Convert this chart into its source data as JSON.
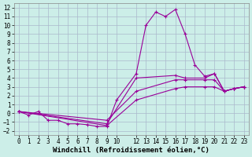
{
  "xlabel": "Windchill (Refroidissement éolien,°C)",
  "bg_color": "#cceee8",
  "grid_color": "#aab8cc",
  "line_color": "#990099",
  "xlim": [
    -0.5,
    23.5
  ],
  "ylim": [
    -2.5,
    12.5
  ],
  "xticks": [
    0,
    1,
    2,
    3,
    4,
    5,
    6,
    7,
    8,
    9,
    10,
    12,
    13,
    14,
    15,
    16,
    17,
    18,
    19,
    20,
    21,
    22,
    23
  ],
  "yticks": [
    -2,
    -1,
    0,
    1,
    2,
    3,
    4,
    5,
    6,
    7,
    8,
    9,
    10,
    11,
    12
  ],
  "series0_x": [
    0,
    1,
    2,
    3,
    4,
    5,
    6,
    7,
    8,
    9,
    10,
    12,
    13,
    14,
    15,
    16,
    17,
    18,
    19,
    20,
    21,
    22,
    23
  ],
  "series0_y": [
    0.2,
    -0.2,
    0.2,
    -0.8,
    -0.8,
    -1.2,
    -1.2,
    -1.3,
    -1.5,
    -1.5,
    1.5,
    4.5,
    10.0,
    11.5,
    11.0,
    11.8,
    9.0,
    5.5,
    4.2,
    4.5,
    2.5,
    2.8,
    3.0
  ],
  "series1_x": [
    0,
    9,
    12,
    16,
    17,
    19,
    20,
    21,
    22,
    23
  ],
  "series1_y": [
    0.2,
    -1.2,
    4.0,
    4.3,
    4.0,
    4.0,
    4.5,
    2.5,
    2.8,
    3.0
  ],
  "series2_x": [
    0,
    9,
    12,
    16,
    17,
    19,
    20,
    21,
    22,
    23
  ],
  "series2_y": [
    0.2,
    -0.8,
    2.5,
    3.8,
    3.8,
    3.8,
    3.8,
    2.5,
    2.8,
    3.0
  ],
  "series3_x": [
    0,
    9,
    12,
    16,
    17,
    19,
    20,
    21,
    22,
    23
  ],
  "series3_y": [
    0.2,
    -1.4,
    1.5,
    2.8,
    3.0,
    3.0,
    3.0,
    2.5,
    2.8,
    3.0
  ],
  "xlabel_fontsize": 6.5,
  "tick_fontsize": 5.5
}
